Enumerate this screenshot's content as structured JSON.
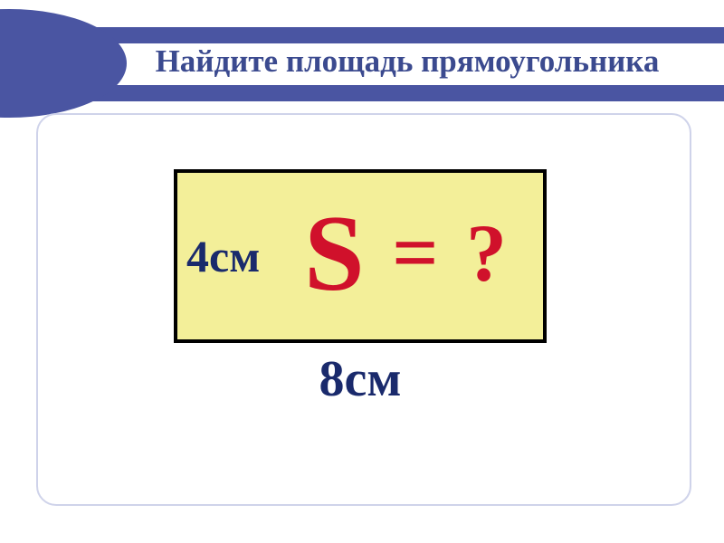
{
  "slide": {
    "title": "Найдите площадь прямоугольника",
    "rectangle": {
      "height_label": "4см",
      "width_label": "8см",
      "formula_s": "S",
      "formula_eq": "=",
      "formula_q": "?"
    }
  },
  "style": {
    "accent_color": "#4a55a2",
    "title_text_color": "#3b4a8f",
    "rect_fill": "#f3ef99",
    "rect_border": "#000000",
    "label_color": "#1a2a6c",
    "formula_color": "#d0112b",
    "frame_border": "#cfd3ea",
    "background": "#ffffff"
  }
}
